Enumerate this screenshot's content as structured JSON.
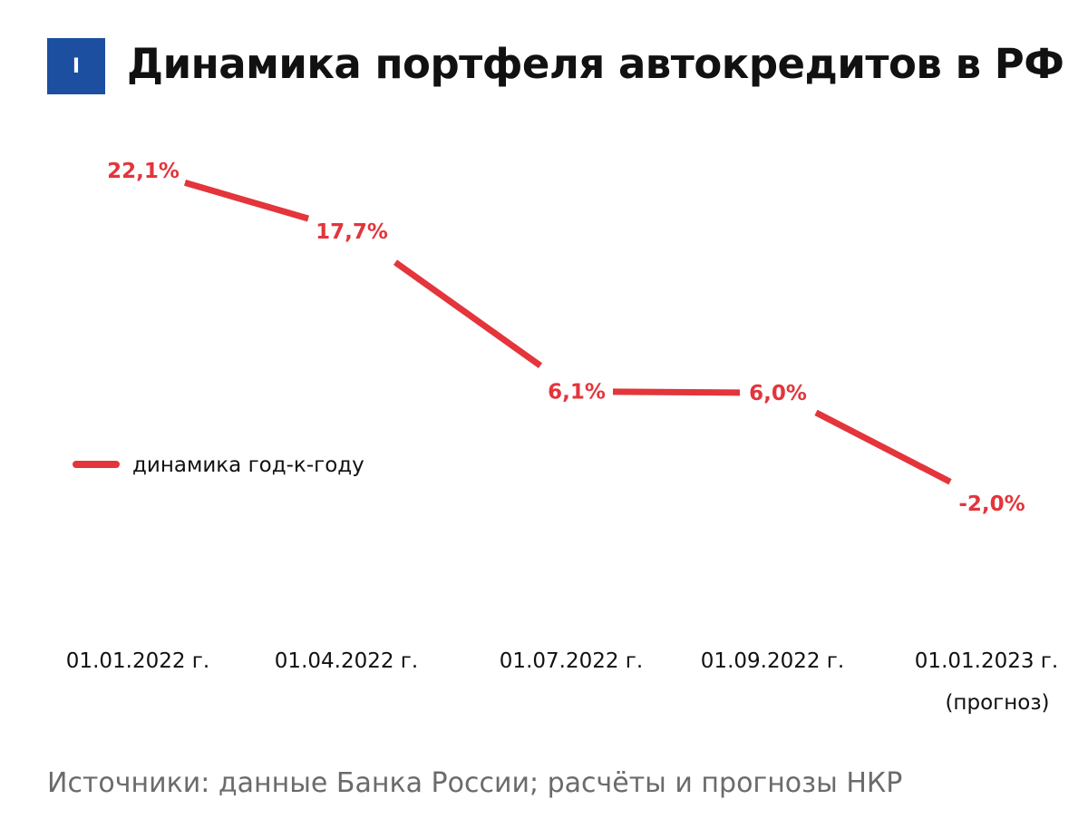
{
  "header": {
    "badge": "I",
    "title": "Динамика портфеля автокредитов в РФ"
  },
  "colors": {
    "accent": "#e3353b",
    "badge": "#1c4fa0",
    "text": "#111111",
    "source": "#6b6b6b"
  },
  "chart_data": {
    "type": "line",
    "title": "Динамика портфеля автокредитов в РФ",
    "categories": [
      "01.01.2022 г.",
      "01.04.2022 г.",
      "01.07.2022 г.",
      "01.09.2022 г.",
      "01.01.2023 г."
    ],
    "category_notes": [
      "",
      "",
      "",
      "",
      "(прогноз)"
    ],
    "series": [
      {
        "name": "динамика год-к-году",
        "values": [
          22.1,
          17.7,
          6.1,
          6.0,
          -2.0
        ],
        "labels": [
          "22,1%",
          "17,7%",
          "6,1%",
          "6,0%",
          "-2,0%"
        ]
      }
    ],
    "ylim": [
      -2,
      22.1
    ],
    "grid": false,
    "legend_position": "left-middle"
  },
  "footer": {
    "source": "Источники: данные Банка России; расчёты и прогнозы НКР"
  }
}
